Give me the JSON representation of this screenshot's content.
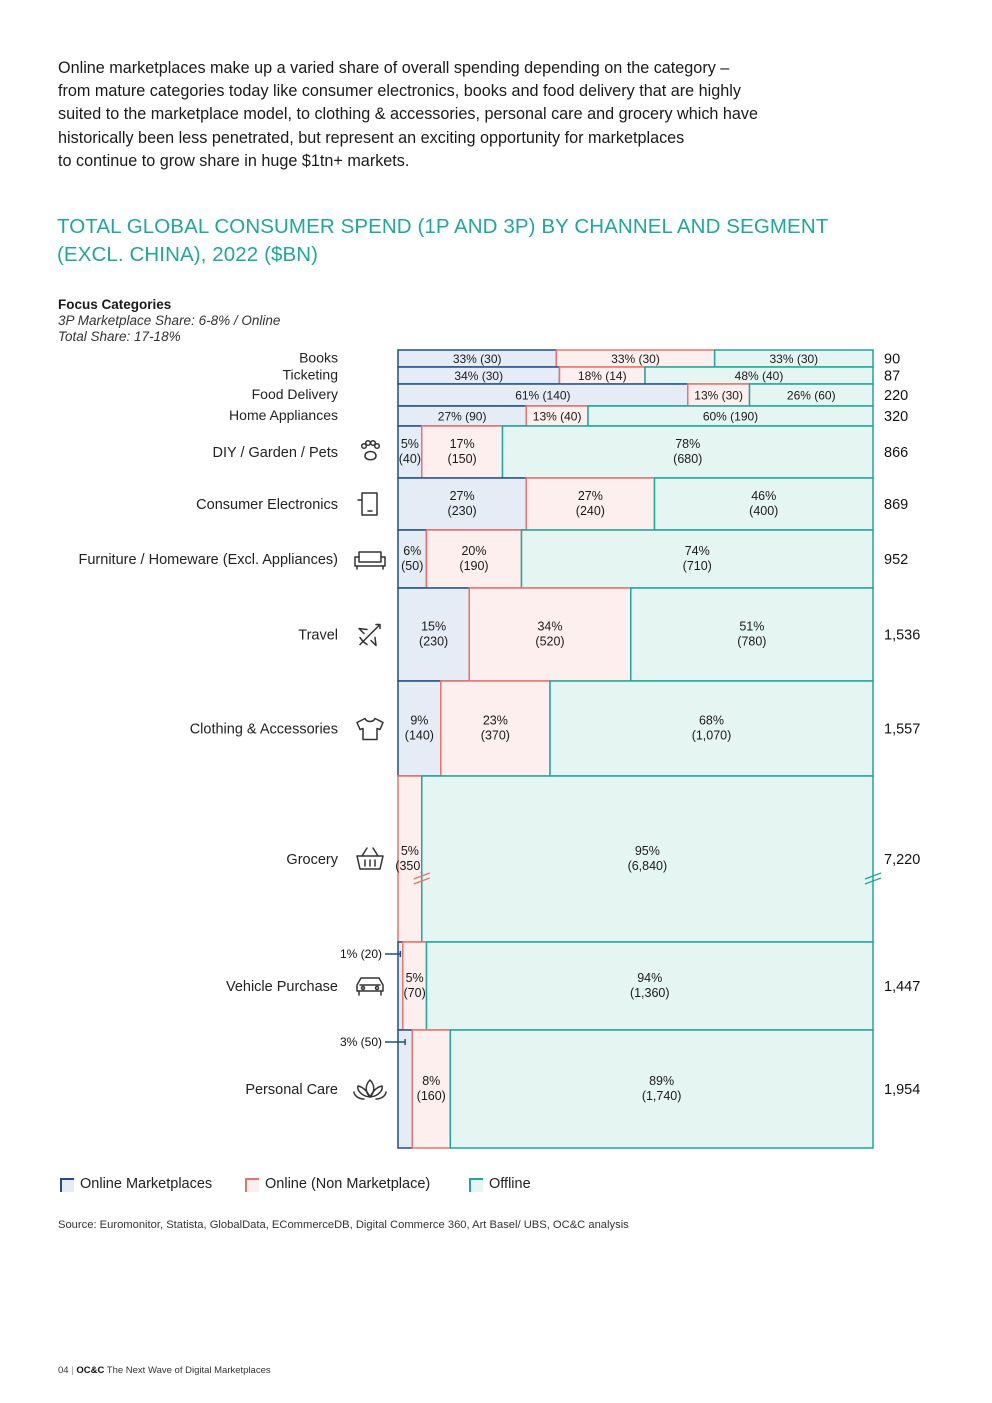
{
  "intro": [
    "Online marketplaces make up a varied share of overall spending depending on the category –",
    "from mature categories today like consumer electronics, books and food delivery that are highly",
    "suited to the marketplace model, to clothing & accessories, personal care and grocery which have",
    "historically been less penetrated, but represent an exciting opportunity for marketplaces",
    "to continue to grow share in huge $1tn+ markets."
  ],
  "title_line1": "TOTAL GLOBAL CONSUMER SPEND (1P AND 3P) BY CHANNEL AND SEGMENT",
  "title_line2": "(EXCL. CHINA), 2022 ($BN)",
  "focus": {
    "heading": "Focus Categories",
    "line1": "3P Marketplace Share: 6-8%  /  Online",
    "line2": "Total Share: 17-18%"
  },
  "colors": {
    "online_marketplaces_border": "#1f4e8c",
    "online_marketplaces_fill": "#e6ecf5",
    "online_non_marketplace_border": "#e8736c",
    "online_non_marketplace_fill": "#fcefed",
    "offline_border": "#1fa79a",
    "offline_fill": "#e5f5f2",
    "title": "#1fa79a"
  },
  "chart_data": {
    "type": "mekko",
    "title": "TOTAL GLOBAL CONSUMER SPEND (1P AND 3P) BY CHANNEL AND SEGMENT (EXCL. CHINA), 2022 ($BN)",
    "series_names": [
      "Online Marketplaces",
      "Online (Non Marketplace)",
      "Offline"
    ],
    "categories": [
      {
        "name": "Books",
        "total": "90",
        "icon": "",
        "small": true,
        "segments": [
          {
            "pct": 33,
            "label": "33% (30)"
          },
          {
            "pct": 33,
            "label": "33% (30)"
          },
          {
            "pct": 33,
            "label": "33% (30)"
          }
        ]
      },
      {
        "name": "Ticketing",
        "total": "87",
        "icon": "",
        "small": true,
        "segments": [
          {
            "pct": 34,
            "label": "34% (30)"
          },
          {
            "pct": 18,
            "label": "18% (14)"
          },
          {
            "pct": 48,
            "label": "48% (40)"
          }
        ]
      },
      {
        "name": "Food Delivery",
        "total": "220",
        "icon": "",
        "small": true,
        "segments": [
          {
            "pct": 61,
            "label": "61% (140)"
          },
          {
            "pct": 13,
            "label": "13% (30)"
          },
          {
            "pct": 26,
            "label": "26% (60)"
          }
        ]
      },
      {
        "name": "Home Appliances",
        "total": "320",
        "icon": "",
        "small": true,
        "segments": [
          {
            "pct": 27,
            "label": "27% (90)"
          },
          {
            "pct": 13,
            "label": "13% (40)"
          },
          {
            "pct": 60,
            "label": "60% (190)"
          }
        ]
      },
      {
        "name": "DIY / Garden / Pets",
        "total": "866",
        "icon": "paw-icon",
        "segments": [
          {
            "pct": 5,
            "l1": "5%",
            "l2": "(40)"
          },
          {
            "pct": 17,
            "l1": "17%",
            "l2": "(150)"
          },
          {
            "pct": 78,
            "l1": "78%",
            "l2": "(680)"
          }
        ]
      },
      {
        "name": "Consumer Electronics",
        "total": "869",
        "icon": "tablet-icon",
        "segments": [
          {
            "pct": 27,
            "l1": "27%",
            "l2": "(230)"
          },
          {
            "pct": 27,
            "l1": "27%",
            "l2": "(240)"
          },
          {
            "pct": 46,
            "l1": "46%",
            "l2": "(400)"
          }
        ]
      },
      {
        "name": "Furniture / Homeware (Excl. Appliances)",
        "total": "952",
        "icon": "sofa-icon",
        "segments": [
          {
            "pct": 6,
            "l1": "6%",
            "l2": "(50)"
          },
          {
            "pct": 20,
            "l1": "20%",
            "l2": "(190)"
          },
          {
            "pct": 74,
            "l1": "74%",
            "l2": "(710)"
          }
        ]
      },
      {
        "name": "Travel",
        "total": "1,536",
        "icon": "airplane-icon",
        "segments": [
          {
            "pct": 15,
            "l1": "15%",
            "l2": "(230)"
          },
          {
            "pct": 34,
            "l1": "34%",
            "l2": "(520)"
          },
          {
            "pct": 51,
            "l1": "51%",
            "l2": "(780)"
          }
        ]
      },
      {
        "name": "Clothing & Accessories",
        "total": "1,557",
        "icon": "tshirt-icon",
        "segments": [
          {
            "pct": 9,
            "l1": "9%",
            "l2": "(140)"
          },
          {
            "pct": 23,
            "l1": "23%",
            "l2": "(370)"
          },
          {
            "pct": 68,
            "l1": "68%",
            "l2": "(1,070)"
          }
        ]
      },
      {
        "name": "Grocery",
        "total": "7,220",
        "icon": "basket-icon",
        "broken": true,
        "segments": [
          {
            "pct": 0,
            "l1": "",
            "l2": ""
          },
          {
            "pct": 5,
            "l1": "5%",
            "l2": "(350)"
          },
          {
            "pct": 95,
            "l1": "95%",
            "l2": "(6,840)"
          }
        ]
      },
      {
        "name": "Vehicle Purchase",
        "total": "1,447",
        "icon": "car-icon",
        "callout": "1% (20)",
        "segments": [
          {
            "pct": 1,
            "l1": "",
            "l2": ""
          },
          {
            "pct": 5,
            "l1": "5%",
            "l2": "(70)"
          },
          {
            "pct": 94,
            "l1": "94%",
            "l2": "(1,360)"
          }
        ]
      },
      {
        "name": "Personal Care",
        "total": "1,954",
        "icon": "lotus-icon",
        "callout": "3% (50)",
        "segments": [
          {
            "pct": 3,
            "l1": "",
            "l2": ""
          },
          {
            "pct": 8,
            "l1": "8%",
            "l2": "(160)"
          },
          {
            "pct": 89,
            "l1": "89%",
            "l2": "(1,740)"
          }
        ]
      }
    ]
  },
  "legend": [
    "Online Marketplaces",
    "Online (Non Marketplace)",
    "Offline"
  ],
  "source": "Source: Euromonitor, Statista, GlobalData, ECommerceDB, Digital Commerce 360, Art Basel/ UBS, OC&C analysis",
  "footer": {
    "page": "04",
    "brand": "OC&C",
    "text": "The Next Wave of Digital Marketplaces"
  }
}
